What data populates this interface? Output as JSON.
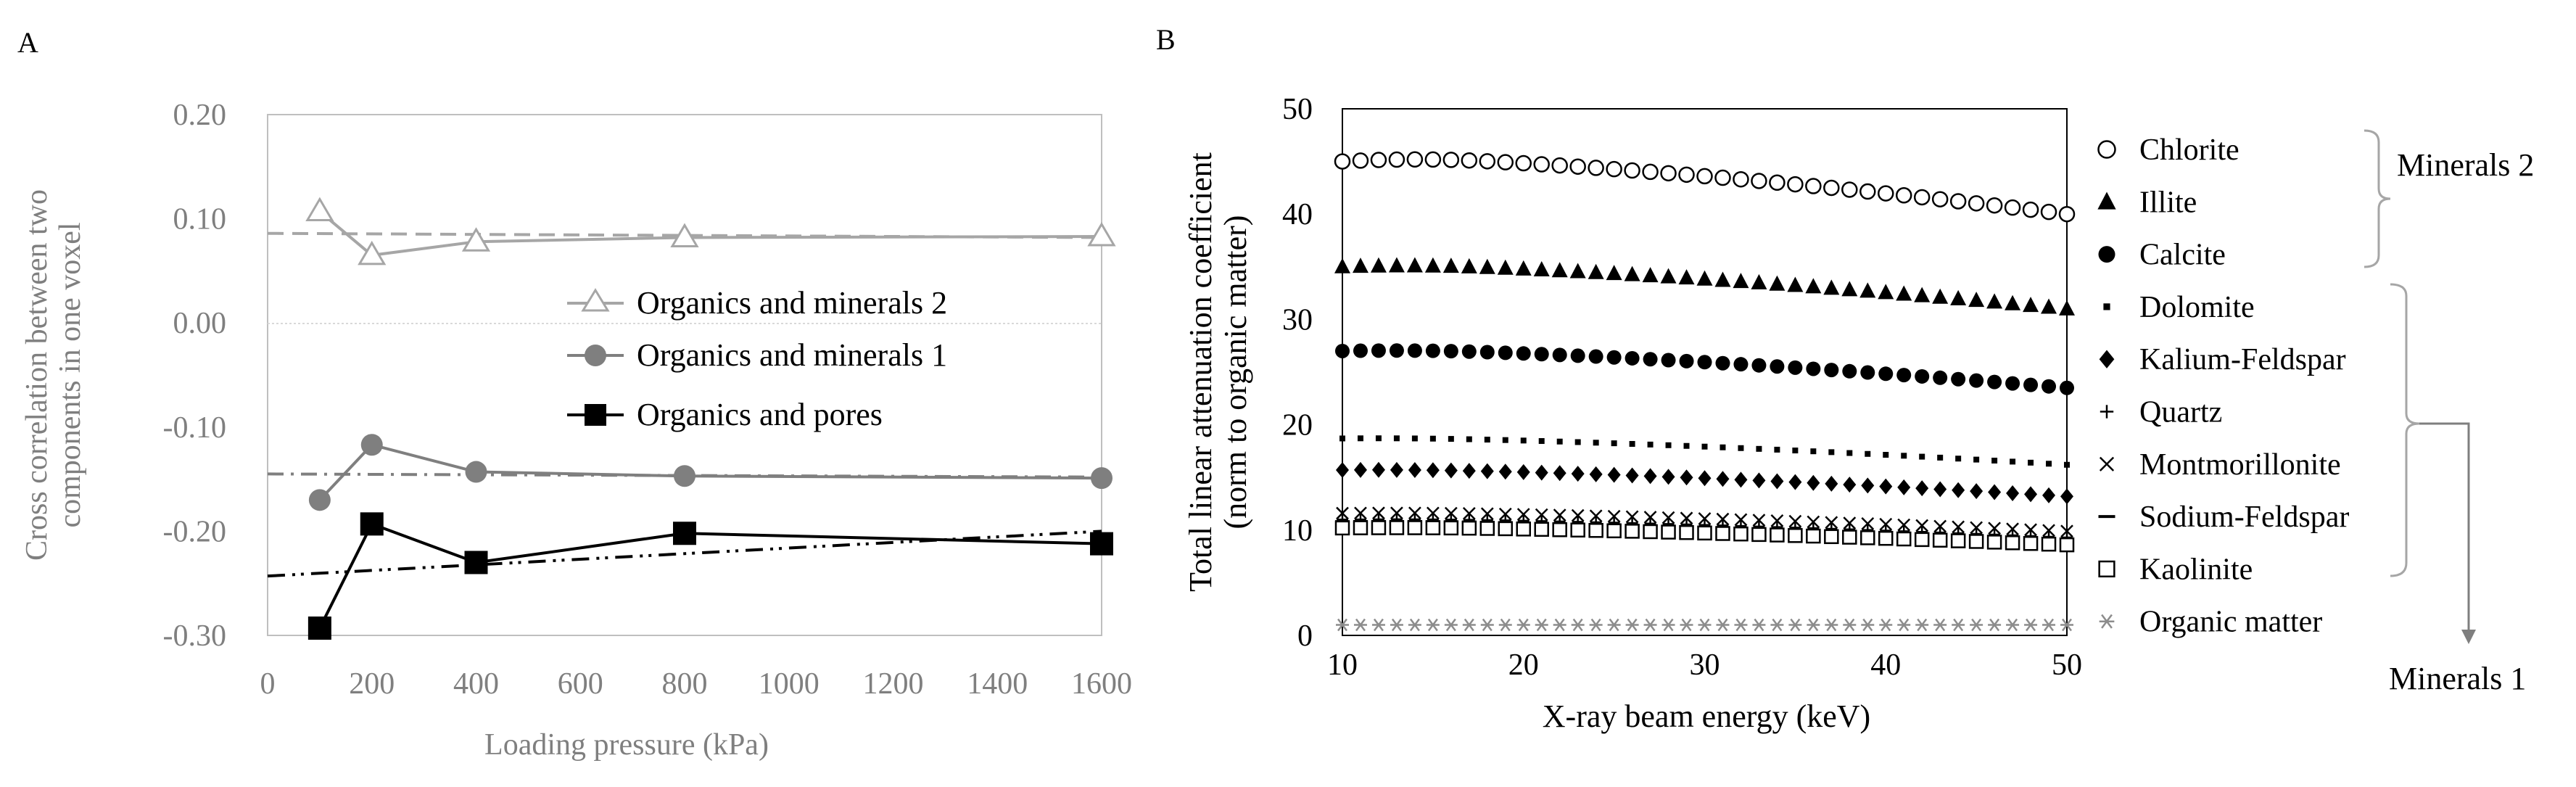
{
  "panel_labels": [
    "A",
    "B"
  ],
  "chart_data": [
    {
      "type": "line",
      "panel": "A",
      "title": "",
      "xlabel": "Loading pressure (kPa)",
      "ylabel": "Cross correlation between two components in one voxel",
      "ylabel_lines": [
        "Cross correlation between two",
        "components in one voxel"
      ],
      "xlim": [
        0,
        1600
      ],
      "ylim": [
        -0.3,
        0.2
      ],
      "xticks": [
        "0",
        "200",
        "400",
        "600",
        "800",
        "1000",
        "1200",
        "1400",
        "1600"
      ],
      "xtick_values": [
        0,
        200,
        400,
        600,
        800,
        1000,
        1200,
        1400,
        1600
      ],
      "yticks": [
        "0.20",
        "0.10",
        "0.00",
        "-0.10",
        "-0.20",
        "-0.30"
      ],
      "ytick_values": [
        0.2,
        0.1,
        0.0,
        -0.1,
        -0.2,
        -0.3
      ],
      "x": [
        100,
        200,
        400,
        800,
        1600
      ],
      "series": [
        {
          "name": "Organics and minerals 2",
          "values": [
            0.107,
            0.065,
            0.078,
            0.082,
            0.083
          ],
          "marker": "triangle-open",
          "color": "#a6a6a6",
          "trend": {
            "style": "dash",
            "color": "#a6a6a6",
            "from": [
              0,
              0.086
            ],
            "to": [
              1600,
              0.082
            ]
          }
        },
        {
          "name": "Organics and minerals 1",
          "values": [
            -0.17,
            -0.117,
            -0.143,
            -0.147,
            -0.149
          ],
          "marker": "circle-filled",
          "color": "#7f7f7f",
          "trend": {
            "style": "dashdot",
            "color": "#7f7f7f",
            "from": [
              0,
              -0.145
            ],
            "to": [
              1600,
              -0.148
            ]
          }
        },
        {
          "name": "Organics and pores",
          "values": [
            -0.293,
            -0.193,
            -0.23,
            -0.202,
            -0.212
          ],
          "marker": "square-filled",
          "color": "#000000",
          "trend": {
            "style": "dashdotdot",
            "color": "#000000",
            "from": [
              0,
              -0.243
            ],
            "to": [
              1600,
              -0.2
            ]
          }
        }
      ]
    },
    {
      "type": "scatter",
      "panel": "B",
      "title": "",
      "xlabel": "X-ray beam energy (keV)",
      "ylabel": "Total linear attenuation coefficient (norm to organic matter)",
      "ylabel_lines": [
        "Total linear attenuation coefficient",
        "(norm to organic matter)"
      ],
      "xlim": [
        10,
        50
      ],
      "ylim": [
        0,
        50
      ],
      "xticks": [
        "10",
        "20",
        "30",
        "40",
        "50"
      ],
      "xtick_values": [
        10,
        20,
        30,
        40,
        50
      ],
      "yticks": [
        "50",
        "40",
        "30",
        "20",
        "10",
        "0"
      ],
      "ytick_values": [
        50,
        40,
        30,
        20,
        10,
        0
      ],
      "x_range": [
        10,
        50
      ],
      "points_per_series": 41,
      "series": [
        {
          "name": "Chlorite",
          "marker": "circle-open",
          "start": 45.0,
          "peak": 45.5,
          "end": 40.0
        },
        {
          "name": "Illite",
          "marker": "triangle-filled",
          "start": 35.0,
          "peak": 35.3,
          "end": 31.0
        },
        {
          "name": "Calcite",
          "marker": "circle-filled",
          "start": 27.0,
          "peak": 27.2,
          "end": 23.5
        },
        {
          "name": "Dolomite",
          "marker": "square-small",
          "start": 18.7,
          "peak": 18.8,
          "end": 16.2
        },
        {
          "name": "Kalium-Feldspar",
          "marker": "diamond-filled",
          "start": 15.7,
          "peak": 15.8,
          "end": 13.2
        },
        {
          "name": "Quartz",
          "marker": "plus",
          "start": 11.0,
          "peak": 11.1,
          "end": 9.3
        },
        {
          "name": "Montmorillonite",
          "marker": "cross",
          "start": 11.6,
          "peak": 11.7,
          "end": 9.9
        },
        {
          "name": "Sodium-Feldspar",
          "marker": "dash",
          "start": 10.8,
          "peak": 10.9,
          "end": 9.0
        },
        {
          "name": "Kaolinite",
          "marker": "square-open",
          "start": 10.2,
          "peak": 10.3,
          "end": 8.6
        },
        {
          "name": "Organic matter",
          "marker": "asterisk",
          "start": 1.0,
          "peak": 1.0,
          "end": 1.0,
          "color": "#8c8c8c"
        }
      ],
      "groups": [
        {
          "name": "Minerals 2",
          "members": [
            "Chlorite",
            "Illite",
            "Calcite"
          ]
        },
        {
          "name": "Minerals 1",
          "members": [
            "Dolomite",
            "Kalium-Feldspar",
            "Quartz",
            "Montmorillonite",
            "Sodium-Feldspar",
            "Kaolinite"
          ]
        }
      ]
    }
  ]
}
